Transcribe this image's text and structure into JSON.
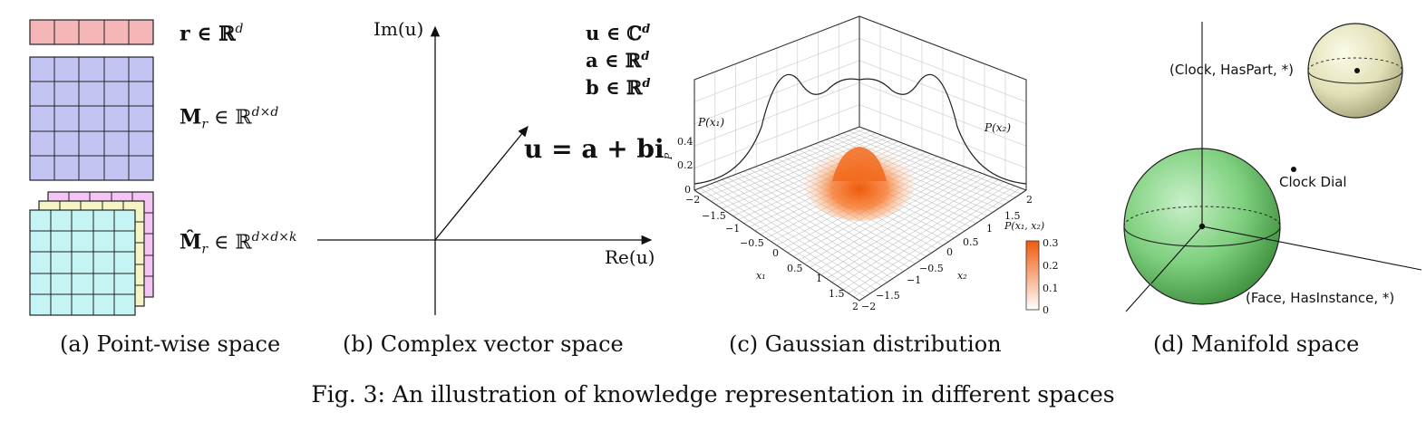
{
  "figure": {
    "caption": "Fig. 3: An illustration of knowledge representation in different spaces"
  },
  "panel_a": {
    "caption": "(a) Point-wise space",
    "vector_label": "r ∈ ℝ",
    "vector_sup": "d",
    "matrix_label": "M",
    "matrix_sub": "r",
    "matrix_tail": " ∈ ℝ",
    "matrix_sup": "d×d",
    "tensor_label": "M̂",
    "tensor_sub": "r",
    "tensor_tail": " ∈ ℝ",
    "tensor_sup": "d×d×k",
    "colors": {
      "vector": "#f4b6b6",
      "matrix": "#c4c4f4",
      "tensor_front": "#c4f4f4",
      "tensor_mid": "#f4f4c4",
      "tensor_back": "#f4c4f4"
    }
  },
  "panel_b": {
    "caption": "(b) Complex vector space",
    "y_axis": "Im(u)",
    "x_axis": "Re(u)",
    "def_u": "u ∈ ℂ",
    "def_u_sup": "d",
    "def_a": "a ∈ ℝ",
    "def_a_sup": "d",
    "def_b": "b ∈ ℝ",
    "def_b_sup": "d",
    "equation": "u = a + bi"
  },
  "panel_c": {
    "caption": "(c) Gaussian distribution",
    "z_axis": "P",
    "z_ticks": [
      "0",
      "0.2",
      "0.4"
    ],
    "x1_label": "x₁",
    "x2_label": "x₂",
    "x1_ticks": [
      "−2",
      "−1.5",
      "−1",
      "−0.5",
      "0",
      "0.5",
      "1",
      "1.5",
      "2"
    ],
    "x2_ticks": [
      "−2",
      "−1.5",
      "−1",
      "−0.5",
      "0",
      "0.5",
      "1",
      "1.5",
      "2"
    ],
    "marginal_x1": "P(x₁)",
    "marginal_x2": "P(x₂)",
    "colorbar_title": "P(x₁, x₂)",
    "colorbar_ticks": [
      "0",
      "0.1",
      "0.2",
      "0.3"
    ],
    "colors": {
      "peak": "#f05a0a",
      "grid": "#bbbbbb"
    }
  },
  "panel_d": {
    "caption": "(d) Manifold space",
    "small_sphere_label": "(Clock, HasPart, *)",
    "point_label": "Clock Dial",
    "large_sphere_label": "(Face, HasInstance, *)",
    "colors": {
      "small_sphere": "#ecebc8",
      "large_sphere": "#7fd07f"
    }
  }
}
